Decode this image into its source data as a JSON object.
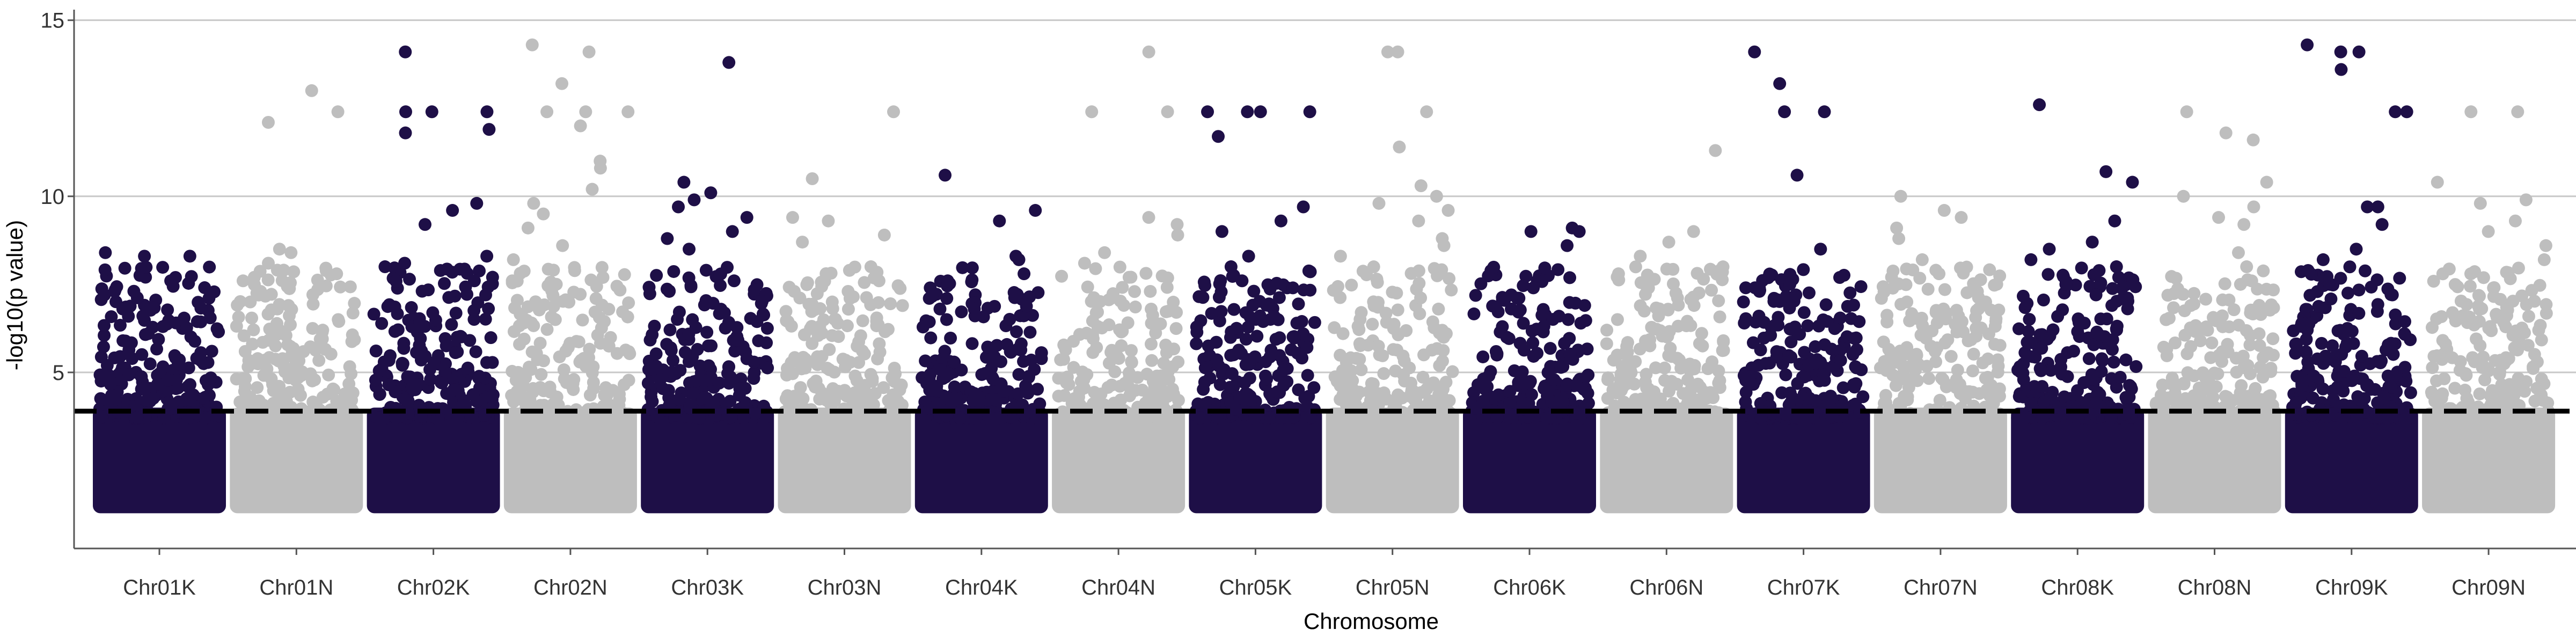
{
  "chart_data": {
    "type": "scatter",
    "title": "",
    "xlabel": "Chromosome",
    "ylabel": "-log10(p value)",
    "ylim": [
      0,
      15.3
    ],
    "yticks": [
      5,
      10,
      15
    ],
    "grid": {
      "major_y": true,
      "major_x": false
    },
    "legend": "none",
    "threshold": 3.9,
    "colors": {
      "K": "#1e0f47",
      "N": "#bebebe",
      "threshold": "#000000"
    },
    "background_floor": 1.0,
    "background_ceiling": 4.0,
    "categories": [
      {
        "name": "Chr01K",
        "color": "#1e0f47",
        "max": 8.4,
        "peaks": [
          8.4,
          8.3,
          8.3,
          7.6,
          7.2,
          6.8,
          6.6,
          6.3,
          6.1,
          5.9,
          5.6,
          5.4
        ]
      },
      {
        "name": "Chr01N",
        "color": "#bebebe",
        "max": 13.0,
        "peaks": [
          13.0,
          12.4,
          12.1,
          8.5,
          8.4,
          8.1,
          7.6,
          7.3,
          7.0,
          6.8,
          6.5,
          6.2
        ]
      },
      {
        "name": "Chr02K",
        "color": "#1e0f47",
        "max": 14.1,
        "peaks": [
          14.1,
          12.4,
          12.4,
          12.4,
          11.9,
          11.8,
          9.8,
          9.6,
          9.2,
          8.3,
          8.1,
          8.0,
          7.6,
          7.2
        ]
      },
      {
        "name": "Chr02N",
        "color": "#bebebe",
        "max": 14.3,
        "peaks": [
          14.3,
          14.1,
          13.2,
          12.4,
          12.4,
          12.4,
          12.0,
          11.0,
          10.8,
          10.2,
          9.8,
          9.5,
          9.1,
          8.6,
          8.2
        ]
      },
      {
        "name": "Chr03K",
        "color": "#1e0f47",
        "max": 13.8,
        "peaks": [
          13.8,
          10.4,
          10.1,
          9.9,
          9.7,
          9.4,
          9.0,
          8.8,
          8.5,
          7.9,
          7.6,
          7.3
        ]
      },
      {
        "name": "Chr03N",
        "color": "#bebebe",
        "max": 12.4,
        "peaks": [
          12.4,
          10.5,
          9.4,
          9.3,
          8.9,
          8.7,
          8.0,
          7.6,
          7.3,
          7.0
        ]
      },
      {
        "name": "Chr04K",
        "color": "#1e0f47",
        "max": 10.6,
        "peaks": [
          10.6,
          9.6,
          9.3,
          8.3,
          8.2,
          7.8,
          7.6,
          7.1,
          6.8,
          6.5
        ]
      },
      {
        "name": "Chr04N",
        "color": "#bebebe",
        "max": 14.1,
        "peaks": [
          14.1,
          12.4,
          12.4,
          9.4,
          9.2,
          8.9,
          8.4,
          8.1,
          7.7,
          7.3,
          7.0
        ]
      },
      {
        "name": "Chr05K",
        "color": "#1e0f47",
        "max": 12.4,
        "peaks": [
          12.4,
          12.4,
          12.4,
          12.4,
          11.7,
          9.7,
          9.3,
          9.0,
          8.3,
          8.0,
          7.6,
          7.4
        ]
      },
      {
        "name": "Chr05N",
        "color": "#bebebe",
        "max": 14.1,
        "peaks": [
          14.1,
          14.1,
          12.4,
          11.4,
          10.3,
          10.0,
          9.8,
          9.6,
          9.3,
          8.8,
          8.6,
          8.3
        ]
      },
      {
        "name": "Chr06K",
        "color": "#1e0f47",
        "max": 9.1,
        "peaks": [
          9.1,
          9.0,
          9.0,
          8.6,
          7.6,
          7.4,
          7.1,
          6.8,
          6.5,
          6.3
        ]
      },
      {
        "name": "Chr06N",
        "color": "#bebebe",
        "max": 11.3,
        "peaks": [
          11.3,
          9.0,
          8.7,
          8.3,
          7.8,
          7.4,
          6.9,
          6.5,
          6.2,
          5.9
        ]
      },
      {
        "name": "Chr07K",
        "color": "#1e0f47",
        "max": 14.1,
        "peaks": [
          14.1,
          13.2,
          12.4,
          12.4,
          10.6,
          8.5,
          7.5,
          7.2,
          7.0,
          6.7,
          6.4
        ]
      },
      {
        "name": "Chr07N",
        "color": "#bebebe",
        "max": 10.0,
        "peaks": [
          10.0,
          9.6,
          9.4,
          9.1,
          8.8,
          8.2,
          7.8,
          7.3,
          7.0,
          6.6
        ]
      },
      {
        "name": "Chr08K",
        "color": "#1e0f47",
        "max": 12.6,
        "peaks": [
          12.6,
          10.7,
          10.4,
          9.3,
          8.7,
          8.5,
          8.2,
          8.0,
          7.7,
          7.5,
          7.2,
          6.9
        ]
      },
      {
        "name": "Chr08N",
        "color": "#bebebe",
        "max": 12.4,
        "peaks": [
          12.4,
          11.8,
          11.6,
          10.4,
          10.0,
          9.7,
          9.4,
          9.2,
          8.4,
          8.0,
          7.5
        ]
      },
      {
        "name": "Chr09K",
        "color": "#1e0f47",
        "max": 14.3,
        "peaks": [
          14.3,
          14.1,
          14.1,
          13.6,
          12.4,
          12.4,
          9.7,
          9.7,
          9.2,
          8.5,
          8.2,
          7.5,
          7.2
        ]
      },
      {
        "name": "Chr09N",
        "color": "#bebebe",
        "max": 12.4,
        "peaks": [
          12.4,
          12.4,
          10.4,
          9.9,
          9.8,
          9.3,
          9.0,
          8.6,
          8.2,
          7.8,
          7.4
        ]
      }
    ]
  }
}
